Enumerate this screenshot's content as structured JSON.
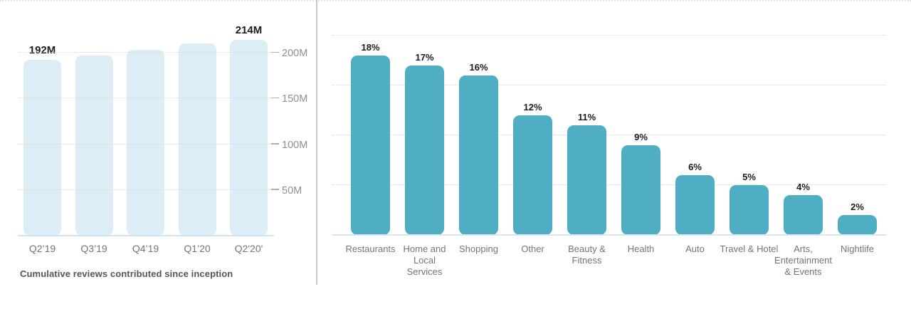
{
  "page": {
    "background": "#ffffff",
    "divider_color": "#cbcbcb",
    "top_border_color": "#e3e3e3"
  },
  "chart_data": [
    {
      "id": "cumulative-reviews",
      "type": "bar",
      "title": "Cumulative reviews contributed since inception",
      "categories": [
        "Q2’19",
        "Q3’19",
        "Q4’19",
        "Q1’20",
        "Q2'20'"
      ],
      "values": [
        192,
        197,
        203,
        210,
        214
      ],
      "unit": "M",
      "point_labels": [
        "192M",
        "",
        "",
        "",
        "214M"
      ],
      "bar_color": "#dcedf5",
      "baseline_color": "#cde5f1",
      "xlabel": "",
      "ylabel": "",
      "ylim": [
        0,
        257
      ],
      "y_ticks": [
        {
          "value": 50,
          "label": "50M"
        },
        {
          "value": 100,
          "label": "100M"
        },
        {
          "value": 150,
          "label": "150M"
        },
        {
          "value": 200,
          "label": "200M"
        }
      ],
      "y_tick_side": "right",
      "grid": "horizontal dotted",
      "legend": "none"
    },
    {
      "id": "review-categories",
      "type": "bar",
      "title": "",
      "categories": [
        "Restaurants",
        "Home and Local Services",
        "Shopping",
        "Other",
        "Beauty & Fitness",
        "Health",
        "Auto",
        "Travel & Hotel",
        "Arts, Entertainment & Events",
        "Nightlife"
      ],
      "values": [
        18,
        17,
        16,
        12,
        11,
        9,
        6,
        5,
        4,
        2
      ],
      "unit": "%",
      "point_labels": [
        "18%",
        "17%",
        "16%",
        "12%",
        "11%",
        "9%",
        "6%",
        "5%",
        "4%",
        "2%"
      ],
      "bar_color": "#4fadc4",
      "baseline_color": "#d8e6ee",
      "xlabel": "",
      "ylabel": "",
      "ylim": [
        0,
        23.5
      ],
      "y_ticks": [
        {
          "value": 5,
          "label": ""
        },
        {
          "value": 10,
          "label": ""
        },
        {
          "value": 15,
          "label": ""
        },
        {
          "value": 20,
          "label": ""
        }
      ],
      "y_tick_side": "none",
      "grid": "horizontal dotted",
      "legend": "none"
    }
  ]
}
